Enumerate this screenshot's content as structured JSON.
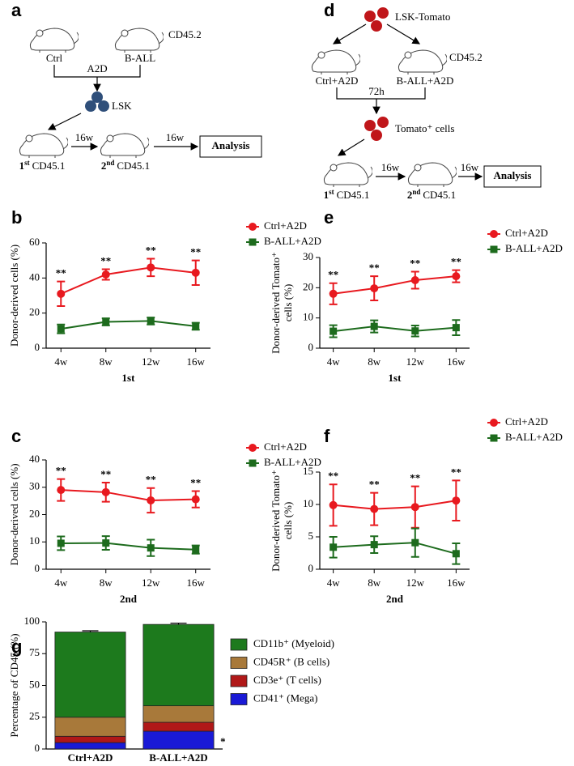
{
  "diagrams": [
    {
      "panel": "a",
      "donor_marker": "CD45.2",
      "left_mouse": "Ctrl",
      "right_mouse": "B-ALL",
      "treatment": "A2D",
      "cells": "LSK",
      "first": {
        "ordinal": "1",
        "suffix": "st",
        "label": "CD45.1"
      },
      "second": {
        "ordinal": "2",
        "suffix": "nd",
        "label": "CD45.1"
      },
      "interval_1": "16w",
      "interval_2": "16w",
      "end": "Analysis"
    },
    {
      "panel": "d",
      "donor_cells": "LSK-Tomato",
      "donor_marker": "CD45.2",
      "left_mouse": "Ctrl+A2D",
      "right_mouse": "B-ALL+A2D",
      "wait": "72h",
      "cells": "Tomato⁺ cells",
      "first": {
        "ordinal": "1",
        "suffix": "st",
        "label": "CD45.1"
      },
      "second": {
        "ordinal": "2",
        "suffix": "nd",
        "label": "CD45.1"
      },
      "interval_1": "16w",
      "interval_2": "16w",
      "end": "Analysis"
    }
  ],
  "chart_data": [
    {
      "type": "line",
      "panel": "b",
      "categories": [
        "4w",
        "8w",
        "12w",
        "16w"
      ],
      "xlabel": "1st",
      "ylabel": [
        "Donor-derived cells (%)"
      ],
      "ylim": [
        0,
        60
      ],
      "yticks": [
        0,
        20,
        40,
        60
      ],
      "annotations": [
        "**",
        "**",
        "**",
        "**"
      ],
      "series": [
        {
          "name": "Ctrl+A2D",
          "color": "#e8191f",
          "marker": "circle",
          "values": [
            31,
            42,
            46,
            43
          ],
          "errors": [
            7,
            3,
            5,
            7
          ]
        },
        {
          "name": "B-ALL+A2D",
          "color": "#1d6b1d",
          "marker": "square",
          "values": [
            11,
            15,
            15.5,
            12.5
          ],
          "errors": [
            2.5,
            2,
            2,
            2
          ]
        }
      ]
    },
    {
      "type": "line",
      "panel": "e",
      "categories": [
        "4w",
        "8w",
        "12w",
        "16w"
      ],
      "xlabel": "1st",
      "ylabel": [
        "Donor-derived Tomato⁺",
        "cells (%)"
      ],
      "ylim": [
        0,
        30
      ],
      "yticks": [
        0,
        10,
        20,
        30
      ],
      "annotations": [
        "**",
        "**",
        "**",
        "**"
      ],
      "series": [
        {
          "name": "Ctrl+A2D",
          "color": "#e8191f",
          "marker": "circle",
          "values": [
            18,
            19.8,
            22.5,
            23.8
          ],
          "errors": [
            3.5,
            4,
            2.8,
            2
          ]
        },
        {
          "name": "B-ALL+A2D",
          "color": "#1d6b1d",
          "marker": "square",
          "values": [
            5.6,
            7.2,
            5.7,
            6.8
          ],
          "errors": [
            2,
            2,
            1.8,
            2.5
          ]
        }
      ]
    },
    {
      "type": "line",
      "panel": "c",
      "categories": [
        "4w",
        "8w",
        "12w",
        "16w"
      ],
      "xlabel": "2nd",
      "ylabel": [
        "Donor-derived cells (%)"
      ],
      "ylim": [
        0,
        40
      ],
      "yticks": [
        0,
        10,
        20,
        30,
        40
      ],
      "annotations": [
        "**",
        "**",
        "**",
        "**"
      ],
      "series": [
        {
          "name": "Ctrl+A2D",
          "color": "#e8191f",
          "marker": "circle",
          "values": [
            29,
            28.2,
            25.2,
            25.6
          ],
          "errors": [
            4,
            3.5,
            4.5,
            3
          ]
        },
        {
          "name": "B-ALL+A2D",
          "color": "#1d6b1d",
          "marker": "square",
          "values": [
            9.5,
            9.6,
            7.8,
            7.2
          ],
          "errors": [
            2.5,
            2.5,
            3,
            1.5
          ]
        }
      ]
    },
    {
      "type": "line",
      "panel": "f",
      "categories": [
        "4w",
        "8w",
        "12w",
        "16w"
      ],
      "xlabel": "2nd",
      "ylabel": [
        "Donor-derived Tomato⁺",
        "cells (%)"
      ],
      "ylim": [
        0,
        15
      ],
      "yticks": [
        0,
        5,
        10,
        15
      ],
      "annotations": [
        "**",
        "**",
        "**",
        "**"
      ],
      "series": [
        {
          "name": "Ctrl+A2D",
          "color": "#e8191f",
          "marker": "circle",
          "values": [
            9.9,
            9.3,
            9.6,
            10.6
          ],
          "errors": [
            3.2,
            2.5,
            3.2,
            3.1
          ]
        },
        {
          "name": "B-ALL+A2D",
          "color": "#1d6b1d",
          "marker": "square",
          "values": [
            3.4,
            3.8,
            4.1,
            2.4
          ],
          "errors": [
            1.6,
            1.3,
            2.2,
            1.6
          ]
        }
      ]
    },
    {
      "type": "stacked_bar",
      "panel": "g",
      "categories": [
        "Ctrl+A2D",
        "B-ALL+A2D"
      ],
      "ylabel": [
        "Percentage of CD45 (%)"
      ],
      "ylim": [
        0,
        100
      ],
      "yticks": [
        0,
        25,
        50,
        75,
        100
      ],
      "annotations": [
        {
          "category": 1,
          "text": "*"
        }
      ],
      "series": [
        {
          "name": "CD41⁺ (Mega)",
          "color": "#1a1ad6",
          "values": [
            5,
            14
          ],
          "errors": [
            1,
            1.5
          ]
        },
        {
          "name": "CD3e⁺ (T cells)",
          "color": "#b01818",
          "values": [
            5,
            7
          ],
          "errors": [
            1,
            1
          ]
        },
        {
          "name": "CD45R⁺ (B cells)",
          "color": "#a8793a",
          "values": [
            15,
            13
          ],
          "errors": [
            1,
            1
          ]
        },
        {
          "name": "CD11b⁺ (Myeloid)",
          "color": "#1d7a1d",
          "values": [
            67,
            64
          ],
          "errors": [
            1,
            1
          ]
        }
      ]
    }
  ]
}
